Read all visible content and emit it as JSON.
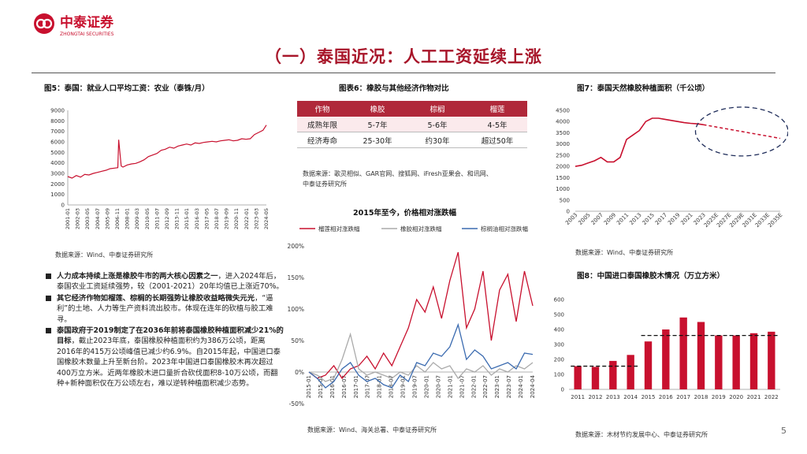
{
  "brand": {
    "name_cn": "中泰证券",
    "name_en": "ZHONGTAI SECURITIES",
    "color": "#c8102e"
  },
  "page_title": "（一）泰国近况：人工工资延续上涨",
  "page_number": "5",
  "fig5": {
    "title": "图5：泰国：就业人口平均工资：农业（泰铢/月）",
    "source": "数据来源：Wind、中泰证券研究所",
    "chart_data": {
      "type": "line",
      "title": "图5：泰国：就业人口平均工资：农业（泰铢/月）",
      "ylim": [
        0,
        9000
      ],
      "yticks": [
        "0",
        "1000",
        "2000",
        "3000",
        "4000",
        "5000",
        "6000",
        "7000",
        "8000",
        "9000"
      ],
      "x_labels": [
        "2001-01",
        "2002-03",
        "2003-05",
        "2004-07",
        "2005-09",
        "2006-11",
        "2008-01",
        "2009-03",
        "2010-05",
        "2011-07",
        "2012-09",
        "2013-11",
        "2015-01",
        "2016-03",
        "2017-05",
        "2018-07",
        "2019-09",
        "2020-11",
        "2022-01",
        "2023-03",
        "2024-05"
      ],
      "x": [
        2001.0,
        2001.5,
        2002.0,
        2002.5,
        2003.0,
        2003.5,
        2004.0,
        2004.5,
        2005.0,
        2005.5,
        2006.0,
        2006.5,
        2006.9,
        2007.0,
        2007.3,
        2007.5,
        2008.0,
        2008.5,
        2009.0,
        2009.5,
        2010.0,
        2010.5,
        2011.0,
        2011.5,
        2012.0,
        2012.5,
        2013.0,
        2013.5,
        2014.0,
        2014.5,
        2015.0,
        2015.5,
        2016.0,
        2016.5,
        2017.0,
        2017.5,
        2018.0,
        2018.5,
        2019.0,
        2019.5,
        2020.0,
        2020.5,
        2021.0,
        2021.5,
        2022.0,
        2022.5,
        2023.0,
        2023.5,
        2024.0,
        2024.4
      ],
      "values": [
        2700,
        2550,
        2800,
        2650,
        2900,
        2850,
        3000,
        3100,
        3200,
        3300,
        3450,
        3500,
        3550,
        6200,
        3700,
        3600,
        3800,
        3900,
        3950,
        4100,
        4300,
        4600,
        4750,
        4900,
        5200,
        5300,
        5500,
        5400,
        5600,
        5700,
        5800,
        5700,
        5900,
        5850,
        5950,
        6000,
        6050,
        6000,
        6100,
        6150,
        6200,
        6100,
        6150,
        6300,
        6250,
        6300,
        6700,
        6900,
        7100,
        7600
      ]
    }
  },
  "fig6": {
    "title": "图表6：橡胶与其他经济作物对比",
    "headers": [
      "作物",
      "橡胶",
      "棕榈",
      "榴莲"
    ],
    "rows": [
      [
        "成熟年限",
        "5-7年",
        "5-6年",
        "4-5年"
      ],
      [
        "经济寿命",
        "25-30年",
        "约30年",
        "超过50年"
      ]
    ],
    "source1": "数据来源：歌灵相似、GAR官网、搜狐网、iFresh亚果会、和讯网、",
    "source2": "中泰证券研究所"
  },
  "fig_mid": {
    "title": "2015年至今，价格相对涨跌幅",
    "legend": [
      "榴莲相对涨跌幅",
      "橡胶相对涨跌幅",
      "棕榈油相对涨跌幅"
    ],
    "source": "数据来源：Wind、海关总署、中泰证券研究所",
    "chart_data": {
      "type": "line",
      "title": "2015年至今，价格相对涨跌幅",
      "ylim": [
        -50,
        200
      ],
      "yticks": [
        "-50%",
        "0%",
        "50%",
        "100%",
        "150%",
        "200%"
      ],
      "x_labels": [
        "2015-01",
        "2015-07",
        "2016-01",
        "2016-07",
        "2017-01",
        "2017-07",
        "2018-01",
        "2018-07",
        "2019-01",
        "2019-07",
        "2020-01",
        "2020-07",
        "2021-01",
        "2021-07",
        "2022-01",
        "2022-07",
        "2023-01",
        "2023-07",
        "2024-01",
        "2024-04"
      ],
      "series": [
        {
          "name": "榴莲相对涨跌幅",
          "color": "#c8102e",
          "values": [
            0,
            -10,
            -5,
            10,
            -10,
            5,
            10,
            25,
            5,
            30,
            10,
            40,
            70,
            115,
            95,
            135,
            85,
            145,
            190,
            70,
            100,
            160,
            50,
            130,
            155,
            80,
            160,
            105
          ]
        },
        {
          "name": "橡胶相对涨跌幅",
          "color": "#aaaaaa",
          "values": [
            0,
            -5,
            -15,
            -10,
            20,
            60,
            5,
            -5,
            0,
            -5,
            -10,
            0,
            -5,
            10,
            0,
            15,
            5,
            10,
            -10,
            5,
            0,
            10,
            -5,
            5,
            0,
            10,
            5,
            15
          ]
        },
        {
          "name": "棕榈油相对涨跌幅",
          "color": "#3b6bb0",
          "values": [
            0,
            -10,
            -25,
            -15,
            5,
            15,
            -5,
            -15,
            -10,
            -20,
            -25,
            -5,
            -15,
            15,
            10,
            30,
            25,
            40,
            75,
            20,
            35,
            25,
            5,
            10,
            15,
            5,
            30,
            28
          ]
        }
      ]
    }
  },
  "fig7": {
    "title": "图7：泰国天然橡胶种植面积（千公顷）",
    "source": "数据来源：Wind、中泰证券研究所",
    "chart_data": {
      "type": "line",
      "title": "图7：泰国天然橡胶种植面积（千公顷）",
      "ylim": [
        0,
        4500
      ],
      "yticks": [
        "0",
        "500",
        "1000",
        "1500",
        "2000",
        "2500",
        "3000",
        "3500",
        "4000",
        "4500"
      ],
      "x_labels": [
        "2003",
        "2005",
        "2007",
        "2009",
        "2011",
        "2013",
        "2015",
        "2017",
        "2019",
        "2021",
        "2023",
        "2025E",
        "2027E",
        "2029E",
        "2031E",
        "2033E",
        "2035E"
      ],
      "actual_x": [
        2003,
        2004,
        2005,
        2006,
        2007,
        2008,
        2009,
        2010,
        2011,
        2012,
        2013,
        2014,
        2015,
        2016,
        2017,
        2018,
        2019,
        2020,
        2021,
        2022,
        2023
      ],
      "actual": [
        2000,
        2050,
        2150,
        2250,
        2400,
        2200,
        2200,
        2400,
        3200,
        3400,
        3600,
        4000,
        4150,
        4150,
        4100,
        4050,
        4000,
        3950,
        3920,
        3900,
        3860
      ],
      "forecast_x": [
        2023,
        2035
      ],
      "forecast": [
        3860,
        3250
      ]
    }
  },
  "fig8": {
    "title": "图8：中国进口泰国橡胶木情况（万立方米）",
    "source": "数据来源：木材节约发展中心、中泰证券研究所",
    "chart_data": {
      "type": "bar",
      "title": "图8：中国进口泰国橡胶木情况（万立方米）",
      "ylim": [
        0,
        600
      ],
      "yticks": [
        "0",
        "100",
        "200",
        "300",
        "400",
        "500",
        "600"
      ],
      "categories": [
        "2011",
        "2012",
        "2013",
        "2014",
        "2015",
        "2016",
        "2017",
        "2018",
        "2019",
        "2020",
        "2021",
        "2022"
      ],
      "values": [
        155,
        150,
        190,
        230,
        320,
        400,
        480,
        450,
        360,
        360,
        375,
        385
      ],
      "reference_lines": [
        155,
        360
      ],
      "color": "#c8102e"
    }
  },
  "bullets": [
    {
      "bold": "人力成本持续上涨是橡胶牛市的两大核心因素之一",
      "text": "，进入2024年后，泰国农业工资延续强势，较（2001-2021）20年均值已上涨近70%。"
    },
    {
      "bold": "其它经济作物如榴莲、棕榈的长期强势让橡胶收益略微失元光",
      "text": "，“逼利”的土地、人力等生产资料流出胶市。体现在连年的砍植与胶工难寻。"
    },
    {
      "bold": "泰国政府于2019制定了在2036年前将泰国橡胶种植面积减少21%的目标",
      "text": "，截止2023年底，泰国橡胶种植面积约为386万公顷，距离2016年的415万公顷峰值已减少约6.9%。自2015年起，中国进口泰国橡胶木数量上升至新台阶。2023年中国进口泰国橡胶木再次超过400万立方米。近两年橡胶木进口量折合砍伐面积8-10万公顷，而翻种+新种面积仅在万公顷左右，难以逆转种植面积减少态势。"
    }
  ]
}
